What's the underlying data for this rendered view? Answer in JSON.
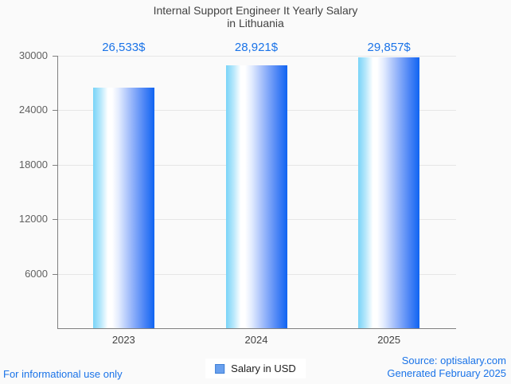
{
  "title": {
    "line1": "Internal Support Engineer It Yearly Salary",
    "line2": "in Lithuania"
  },
  "chart_data": {
    "type": "bar",
    "title": "Internal Support Engineer It Yearly Salary in Lithuania",
    "categories": [
      "2023",
      "2024",
      "2025"
    ],
    "values": [
      26533,
      28921,
      29857
    ],
    "value_labels": [
      "26,533$",
      "28,921$",
      "29,857$"
    ],
    "xlabel": "",
    "ylabel": "",
    "ylim": [
      0,
      30000
    ],
    "y_ticks": [
      6000,
      12000,
      18000,
      24000,
      30000
    ],
    "grid": true,
    "legend_position": "bottom",
    "bar_gradient": [
      "#79d4f8",
      "#ffffff",
      "#0f64f2"
    ]
  },
  "legend": {
    "label": "Salary in USD",
    "swatch_color": "#69a0ee"
  },
  "footer": {
    "disclaimer": "For informational use only",
    "source": "Source: optisalary.com",
    "generated": "Generated February 2025"
  },
  "colors": {
    "accent_blue": "#1a73e8",
    "title_gray": "#424242",
    "axis_label_gray": "#616161",
    "gridline": "#e6e6e6",
    "axis_line": "#808080",
    "background": "#fafafa"
  }
}
